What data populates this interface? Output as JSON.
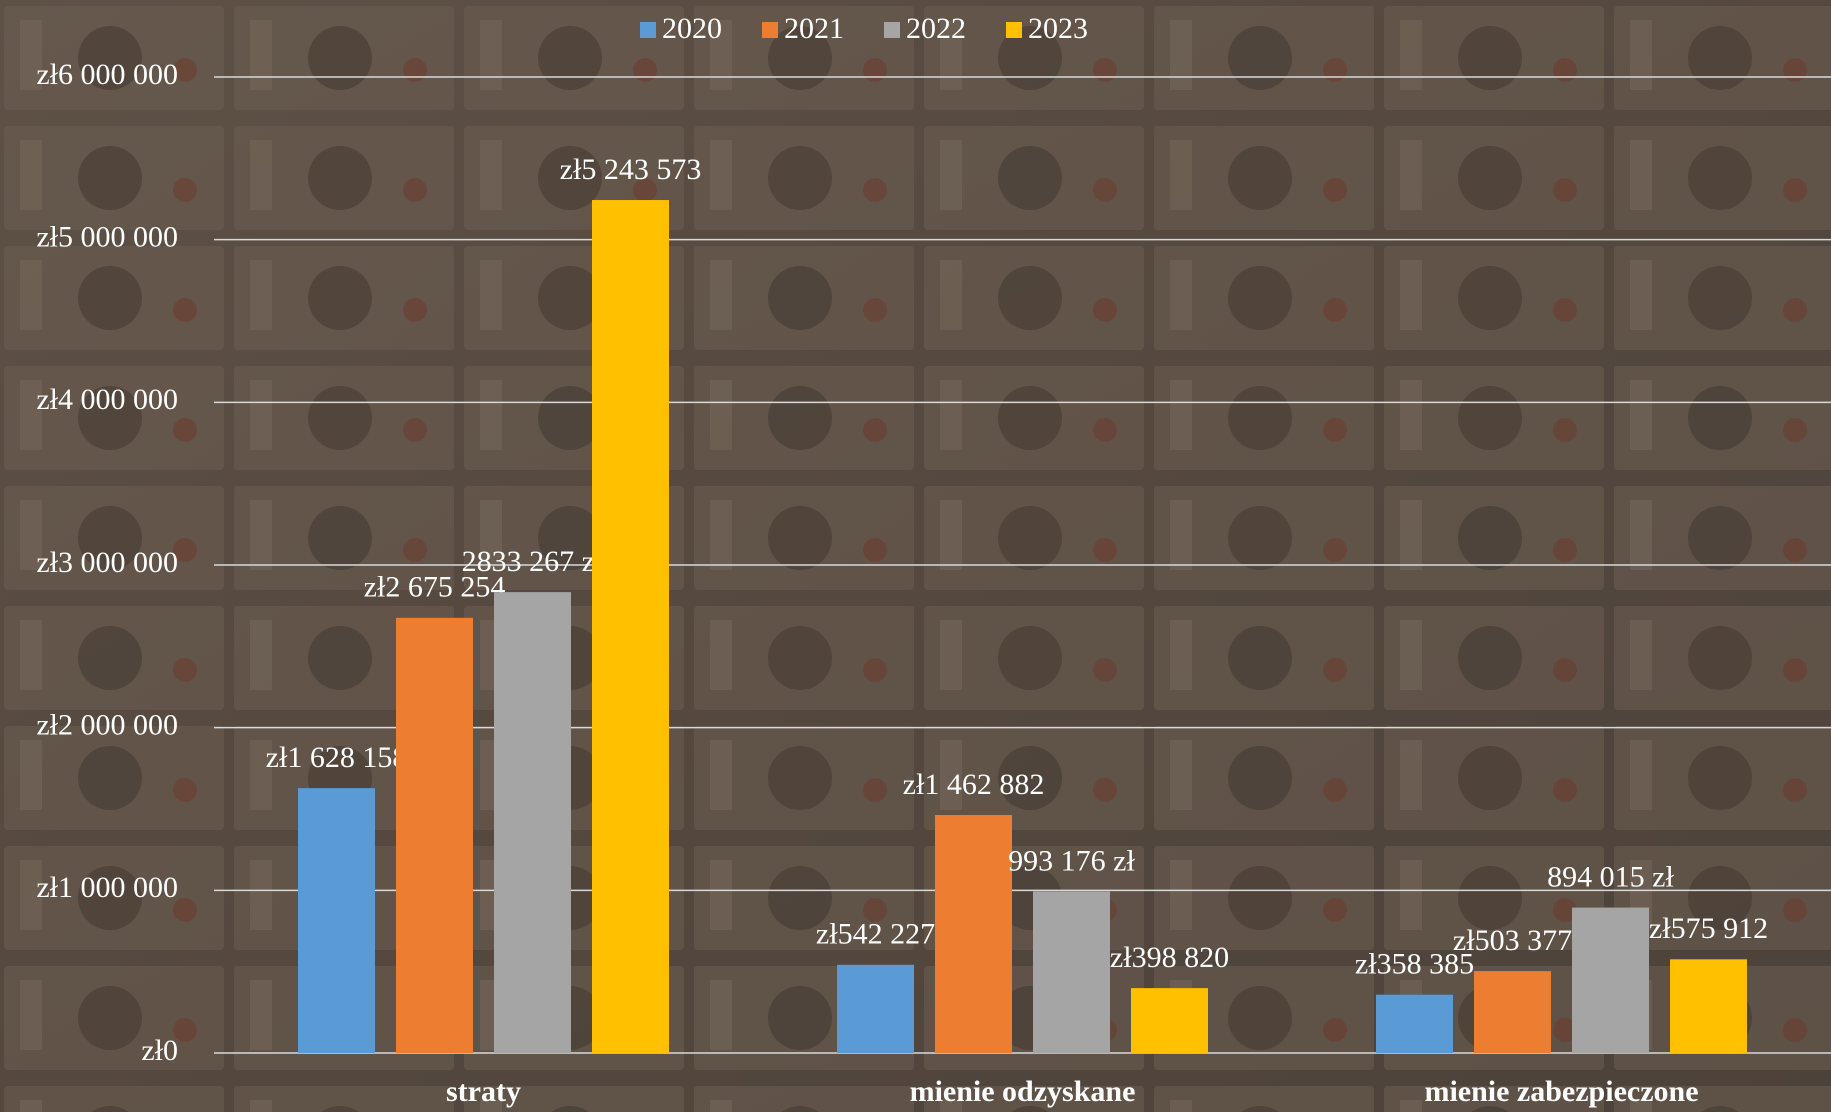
{
  "chart_data": {
    "type": "bar",
    "categories": [
      "straty",
      "mienie odzyskane",
      "mienie zabezpieczone"
    ],
    "series": [
      {
        "name": "2020",
        "color": "#5b9bd5",
        "values": [
          1628158,
          542227,
          358385
        ],
        "value_labels": [
          "zł1 628 158",
          "zł542 227",
          "zł358 385"
        ]
      },
      {
        "name": "2021",
        "color": "#ed7d31",
        "values": [
          2675254,
          1462882,
          503377
        ],
        "value_labels": [
          "zł2 675 254",
          "zł1 462 882",
          "zł503 377"
        ]
      },
      {
        "name": "2022",
        "color": "#a5a5a5",
        "values": [
          2833267,
          993176,
          894015
        ],
        "value_labels": [
          "2833 267 zł",
          "993 176 zł",
          "894 015 zł"
        ]
      },
      {
        "name": "2023",
        "color": "#ffc000",
        "values": [
          5243573,
          398820,
          575912
        ],
        "value_labels": [
          "zł5 243 573",
          "zł398 820",
          "zł575 912"
        ]
      }
    ],
    "ylim": [
      0,
      6000000
    ],
    "yticks": [
      {
        "value": 0,
        "label": "zł0"
      },
      {
        "value": 1000000,
        "label": "zł1 000 000"
      },
      {
        "value": 2000000,
        "label": "zł2 000 000"
      },
      {
        "value": 3000000,
        "label": "zł3 000 000"
      },
      {
        "value": 4000000,
        "label": "zł4 000 000"
      },
      {
        "value": 5000000,
        "label": "zł5 000 000"
      },
      {
        "value": 6000000,
        "label": "zł6 000 000"
      }
    ],
    "grid": true,
    "legend": "top"
  }
}
